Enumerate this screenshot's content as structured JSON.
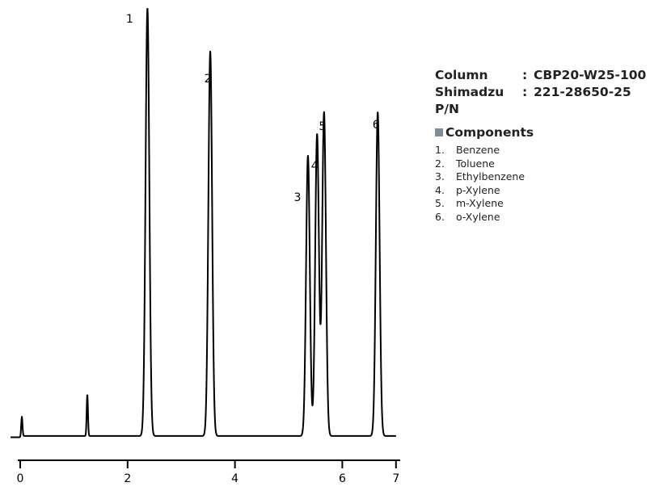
{
  "chart_data": {
    "type": "line",
    "title": "",
    "xlabel": "",
    "ylabel": "",
    "xlim": [
      0,
      7
    ],
    "ylim": [
      0,
      100
    ],
    "x_ticks": [
      "0",
      "2",
      "4",
      "6",
      "7"
    ],
    "x_tick_values": [
      0,
      2,
      4,
      6,
      7
    ],
    "baseline": 1.5,
    "series": [
      {
        "peaks": [
          {
            "label": "1",
            "rt": 2.37,
            "height": 100
          },
          {
            "label": "2",
            "rt": 3.54,
            "height": 90
          },
          {
            "label": "3",
            "rt": 5.36,
            "height": 66
          },
          {
            "label": "4",
            "rt": 5.53,
            "height": 71
          },
          {
            "label": "5",
            "rt": 5.66,
            "height": 76
          },
          {
            "label": "6",
            "rt": 6.66,
            "height": 76
          }
        ],
        "minor_peaks": [
          {
            "rt": 0.03,
            "height": 6
          },
          {
            "rt": 1.25,
            "height": 11
          }
        ]
      }
    ]
  },
  "column_info": {
    "column_key": "Column",
    "column_value": "CBP20-W25-100",
    "pn_key": "Shimadzu P/N",
    "pn_value": "221-28650-25",
    "separator": ":"
  },
  "components": {
    "heading": "Components",
    "marker_color": "#7f8c96",
    "items": [
      {
        "num": "1.",
        "name": "Benzene"
      },
      {
        "num": "2.",
        "name": "Toluene"
      },
      {
        "num": "3.",
        "name": "Ethylbenzene"
      },
      {
        "num": "4.",
        "name": "p-Xylene"
      },
      {
        "num": "5.",
        "name": "m-Xylene"
      },
      {
        "num": "6.",
        "name": "o-Xylene"
      }
    ]
  }
}
